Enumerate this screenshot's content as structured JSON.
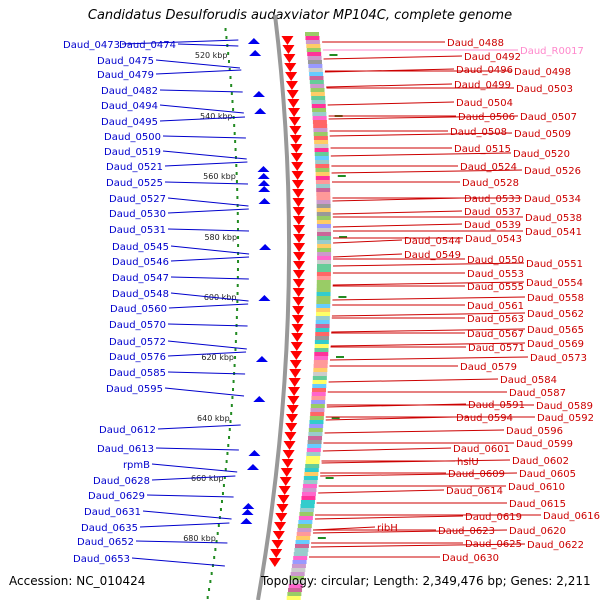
{
  "title": "Candidatus Desulforudis audaxviator MP104C, complete genome",
  "footer": {
    "accession": "Accession: NC_010424",
    "topology": "Topology: circular; Length: 2,349,476 bp; Genes: 2,211"
  },
  "colors": {
    "left_label": "#0000cc",
    "right_label": "#cc0000",
    "rna_label": "#ff88cc",
    "backbone": "#999999",
    "tick": "#228b22"
  },
  "scale_ticks": [
    "520 kbp",
    "540 kbp",
    "560 kbp",
    "580 kbp",
    "600 kbp",
    "620 kbp",
    "640 kbp",
    "660 kbp",
    "680 kbp"
  ],
  "left_labels": [
    "Daud_0473",
    "Daud_0474",
    "Daud_0475",
    "Daud_0479",
    "Daud_0482",
    "Daud_0494",
    "Daud_0495",
    "Daud_0500",
    "Daud_0519",
    "Daud_0521",
    "Daud_0525",
    "Daud_0527",
    "Daud_0530",
    "Daud_0531",
    "Daud_0545",
    "Daud_0546",
    "Daud_0547",
    "Daud_0548",
    "Daud_0560",
    "Daud_0570",
    "Daud_0572",
    "Daud_0576",
    "Daud_0585",
    "Daud_0595",
    "Daud_0612",
    "Daud_0613",
    "rpmB",
    "Daud_0628",
    "Daud_0629",
    "Daud_0631",
    "Daud_0635",
    "Daud_0652",
    "Daud_0653"
  ],
  "right_labels": [
    "Daud_0488",
    "Daud_0492",
    "Daud_R0017",
    "Daud_0496",
    "Daud_0498",
    "Daud_0499",
    "Daud_0503",
    "Daud_0504",
    "Daud_0506",
    "Daud_0507",
    "Daud_0508",
    "Daud_0509",
    "Daud_0515",
    "Daud_0520",
    "Daud_0524",
    "Daud_0526",
    "Daud_0528",
    "Daud_0533",
    "Daud_0534",
    "Daud_0537",
    "Daud_0538",
    "Daud_0539",
    "Daud_0541",
    "Daud_0544",
    "Daud_0543",
    "Daud_0549",
    "Daud_0550",
    "Daud_0551",
    "Daud_0553",
    "Daud_0554",
    "Daud_0555",
    "Daud_0558",
    "Daud_0561",
    "Daud_0562",
    "Daud_0563",
    "Daud_0565",
    "Daud_0567",
    "Daud_0569",
    "Daud_0571",
    "Daud_0573",
    "Daud_0579",
    "Daud_0584",
    "Daud_0587",
    "Daud_0591",
    "Daud_0589",
    "Daud_0594",
    "Daud_0592",
    "Daud_0596",
    "Daud_0599",
    "Daud_0601",
    "hslU",
    "Daud_0602",
    "Daud_0609",
    "Daud_0605",
    "Daud_0610",
    "Daud_0614",
    "Daud_0615",
    "Daud_0619",
    "Daud_0616",
    "ribH",
    "Daud_0623",
    "Daud_0620",
    "Daud_0625",
    "Daud_0622",
    "Daud_0630"
  ],
  "rna_labels": [
    "Daud_R0017"
  ]
}
